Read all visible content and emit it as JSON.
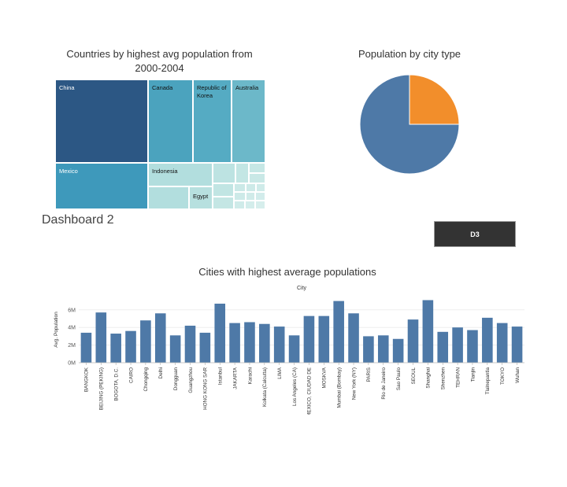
{
  "dashboard": {
    "label": "Dashboard 2",
    "button_label": "D3"
  },
  "treemap": {
    "title_line1": "Countries by highest avg population from",
    "title_line2": "2000-2004",
    "cells": [
      {
        "label": "China",
        "color": "#2c5784"
      },
      {
        "label": "Canada",
        "color": "#4ba3be"
      },
      {
        "label": "Republic of Korea",
        "color": "#55abc3"
      },
      {
        "label": "Australia",
        "color": "#6cb8c9"
      },
      {
        "label": "Mexico",
        "color": "#3e99bb"
      },
      {
        "label": "Indonesia",
        "color": "#b2dede"
      },
      {
        "label": "Egypt",
        "color": "#b7e0df"
      }
    ]
  },
  "pie": {
    "title": "Population by city type",
    "chart_data": {
      "type": "pie",
      "slices": [
        {
          "value": 75,
          "color": "#4e79a7"
        },
        {
          "value": 25,
          "color": "#f28e2b"
        }
      ]
    }
  },
  "bars": {
    "title": "Cities with highest average populations",
    "column_header": "City",
    "ylabel": "Avg. Population",
    "chart_data": {
      "type": "bar",
      "categories": [
        "BANGKOK",
        "BEIJING (PEKING)",
        "BOGOTA, D.C.",
        "CAIRO",
        "Chongqing",
        "Delhi",
        "Dongguan",
        "Guangzhou",
        "HONG KONG SAR",
        "Istanbul",
        "JAKARTA",
        "Karachi",
        "Kolkata (Calcutta)",
        "LIMA",
        "Los Angeles (CA)",
        "MEXICO, CIUDAD DE",
        "MOSKVA",
        "Mumbai (Bombay)",
        "New York (NY)",
        "PARIS",
        "Rio de Janeiro",
        "Sao Paulo",
        "SEOUL",
        "Shanghai",
        "Shenzhen",
        "TEHRAN",
        "Tianjin",
        "Tlalnepantla",
        "TOKYO",
        "Wuhan"
      ],
      "values": [
        3.4,
        5.7,
        3.3,
        3.6,
        4.8,
        5.6,
        3.1,
        4.2,
        3.4,
        6.7,
        4.5,
        4.6,
        4.4,
        4.1,
        3.1,
        5.3,
        5.3,
        7.0,
        5.6,
        3.0,
        3.1,
        2.7,
        4.9,
        7.1,
        3.5,
        4.0,
        3.7,
        5.1,
        4.5,
        4.1
      ],
      "yticks": [
        0,
        2,
        4,
        6
      ],
      "ytick_labels": [
        "0M",
        "2M",
        "4M",
        "6M"
      ],
      "ylim": [
        0,
        7.5
      ],
      "color": "#4e79a7"
    }
  }
}
